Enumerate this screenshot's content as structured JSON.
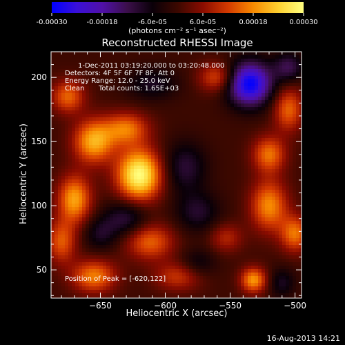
{
  "chart_data": {
    "type": "heatmap",
    "title": "Reconstructed RHESSI Image",
    "xlabel": "Heliocentric X (arcsec)",
    "ylabel": "Heliocentric Y (arcsec)",
    "xlim": [
      -688,
      -495
    ],
    "ylim": [
      28,
      220
    ],
    "x_ticks": [
      -650,
      -600,
      -550,
      -500
    ],
    "y_ticks": [
      50,
      100,
      150,
      200
    ],
    "x_tick_labels": [
      "−650",
      "−600",
      "−550",
      "−500"
    ],
    "y_tick_labels": [
      "50",
      "100",
      "150",
      "200"
    ],
    "colorbar": {
      "range": [
        -0.0003,
        0.0003
      ],
      "tick_labels": [
        "-0.00030",
        "-0.00018",
        "-6.0e-05",
        "6.0e-05",
        "0.00018",
        "0.00030"
      ],
      "unit_label": "(photons cm⁻² s⁻¹ asec⁻²)",
      "palette": [
        "#0000ff",
        "#3a10d8",
        "#5010a8",
        "#3b0f4a",
        "#0a0008",
        "#3c0800",
        "#8a0c00",
        "#d43a00",
        "#f88a00",
        "#fdd030",
        "#ffff80"
      ]
    },
    "annotations": {
      "time_range": "1-Dec-2011 03:19:20.000 to 03:20:48.000",
      "detectors": "Detectors: 4F 5F 6F 7F 8F, Att 0",
      "energy_range": "Energy Range: 12.0 - 25.0 keV",
      "clean_label": "Clean",
      "total_counts": "Total counts: 1.65E+03",
      "peak_position": "Position of Peak = [-620,122]"
    },
    "peak": {
      "x": -620,
      "y": 122
    },
    "sources": [
      {
        "x": -620,
        "y": 124,
        "amp": 0.0003,
        "sx": 12,
        "sy": 14
      },
      {
        "x": -655,
        "y": 150,
        "amp": 0.00021,
        "sx": 11,
        "sy": 12
      },
      {
        "x": -630,
        "y": 160,
        "amp": 0.00016,
        "sx": 12,
        "sy": 9
      },
      {
        "x": -675,
        "y": 185,
        "amp": 0.00015,
        "sx": 9,
        "sy": 9
      },
      {
        "x": -670,
        "y": 105,
        "amp": 0.0002,
        "sx": 9,
        "sy": 13
      },
      {
        "x": -680,
        "y": 72,
        "amp": 0.00014,
        "sx": 8,
        "sy": 12
      },
      {
        "x": -655,
        "y": 45,
        "amp": 0.00017,
        "sx": 12,
        "sy": 9
      },
      {
        "x": -612,
        "y": 72,
        "amp": 0.00015,
        "sx": 13,
        "sy": 10
      },
      {
        "x": -590,
        "y": 45,
        "amp": 0.00011,
        "sx": 13,
        "sy": 8
      },
      {
        "x": -560,
        "y": 200,
        "amp": 0.00013,
        "sx": 10,
        "sy": 8
      },
      {
        "x": -505,
        "y": 175,
        "amp": 0.00015,
        "sx": 8,
        "sy": 12
      },
      {
        "x": -520,
        "y": 140,
        "amp": 0.00016,
        "sx": 9,
        "sy": 10
      },
      {
        "x": -520,
        "y": 100,
        "amp": 0.00018,
        "sx": 10,
        "sy": 14
      },
      {
        "x": -500,
        "y": 78,
        "amp": 0.00016,
        "sx": 8,
        "sy": 10
      },
      {
        "x": -532,
        "y": 42,
        "amp": 0.00019,
        "sx": 7,
        "sy": 7
      },
      {
        "x": -553,
        "y": 75,
        "amp": 9e-05,
        "sx": 9,
        "sy": 8
      },
      {
        "x": -535,
        "y": 195,
        "amp": -0.0003,
        "sx": 12,
        "sy": 12
      },
      {
        "x": -585,
        "y": 130,
        "amp": -0.0001,
        "sx": 12,
        "sy": 14
      },
      {
        "x": -630,
        "y": 90,
        "amp": -0.00011,
        "sx": 12,
        "sy": 10
      },
      {
        "x": -575,
        "y": 95,
        "amp": -9e-05,
        "sx": 12,
        "sy": 11
      },
      {
        "x": -610,
        "y": 195,
        "amp": -8e-05,
        "sx": 14,
        "sy": 9
      },
      {
        "x": -650,
        "y": 78,
        "amp": -8e-05,
        "sx": 9,
        "sy": 9
      },
      {
        "x": -575,
        "y": 55,
        "amp": -7e-05,
        "sx": 10,
        "sy": 8
      },
      {
        "x": -505,
        "y": 208,
        "amp": -0.00012,
        "sx": 8,
        "sy": 8
      },
      {
        "x": -510,
        "y": 40,
        "amp": -8e-05,
        "sx": 7,
        "sy": 8
      }
    ]
  },
  "footer": {
    "date": "16-Aug-2013 14:21"
  }
}
